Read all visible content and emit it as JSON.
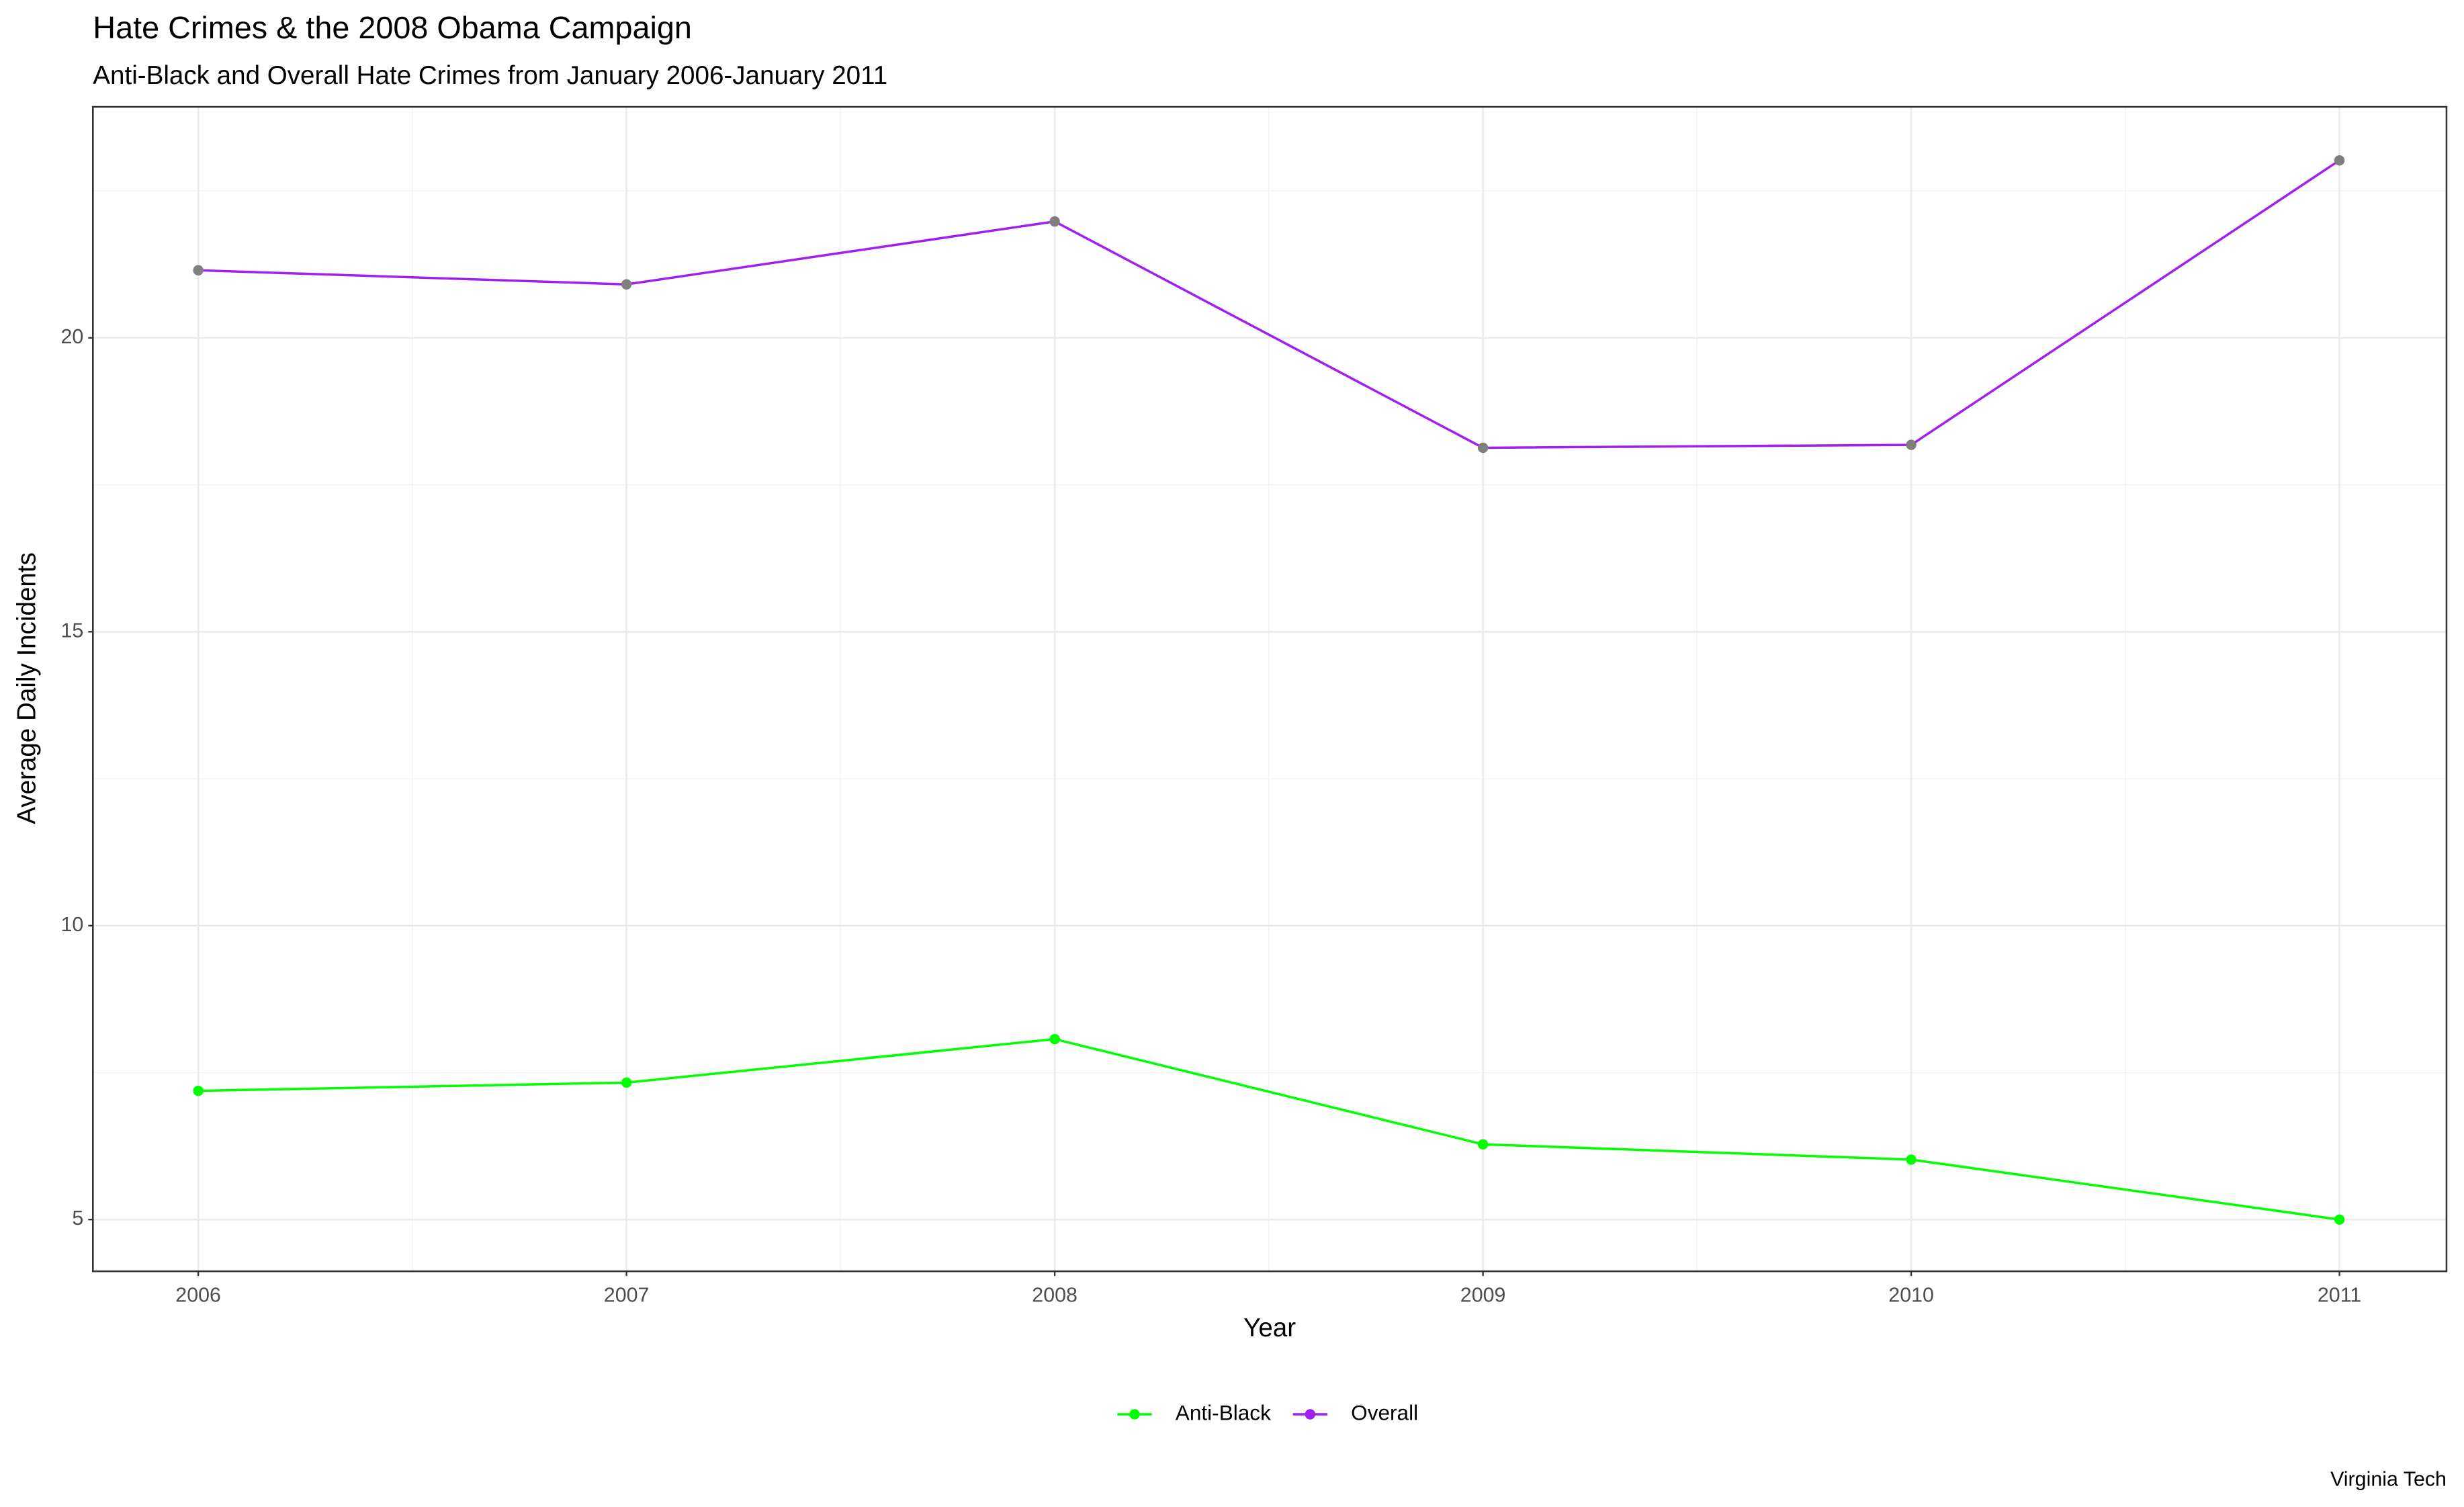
{
  "chart_data": {
    "type": "line",
    "title": "Hate Crimes & the 2008 Obama Campaign",
    "subtitle": "Anti-Black and Overall Hate Crimes from January 2006-January 2011",
    "x_label": "Year",
    "y_label": "Average Daily Incidents",
    "caption": "Virginia Tech",
    "x": [
      2006,
      2007,
      2008,
      2009,
      2010,
      2011
    ],
    "series": [
      {
        "name": "Anti-Black",
        "color": "#00ff00",
        "point_color": "#00ff00",
        "values": [
          7.19,
          7.33,
          8.07,
          6.28,
          6.02,
          5.0
        ]
      },
      {
        "name": "Overall",
        "color": "#a020f0",
        "point_color": "#7f7f7f",
        "values": [
          21.15,
          20.91,
          21.98,
          18.13,
          18.18,
          23.02
        ]
      }
    ],
    "xlim": [
      2005.754,
      2011.25
    ],
    "ylim": [
      4.12,
      23.93
    ],
    "xticks": [
      2006,
      2007,
      2008,
      2009,
      2010,
      2011
    ],
    "yticks": [
      5,
      10,
      15,
      20
    ],
    "grid": true,
    "minor_grid": true,
    "legend": "bottom"
  }
}
